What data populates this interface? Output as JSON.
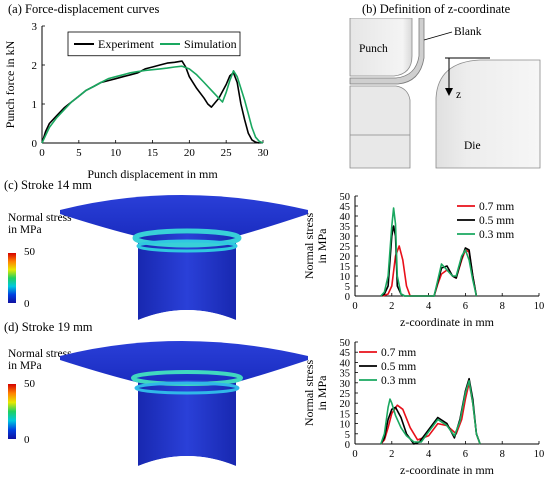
{
  "panel_a": {
    "title": "(a) Force-displacement curves"
  },
  "panel_b": {
    "title": "(b) Definition of z-coordinate",
    "labels": {
      "punch": "Punch",
      "blank": "Blank",
      "z": "z",
      "die": "Die"
    }
  },
  "panel_c": {
    "title": "(c) Stroke 14 mm",
    "colorbar_title": "Normal stress\nin MPa",
    "cb_max": "50",
    "cb_min": "0"
  },
  "panel_d": {
    "title": "(d) Stroke 19 mm",
    "colorbar_title": "Normal stress\nin MPa",
    "cb_max": "50",
    "cb_min": "0"
  },
  "chart_data": [
    {
      "id": "force",
      "type": "line",
      "xlabel": "Punch displacement in mm",
      "ylabel": "Punch force in kN",
      "xlim": [
        0,
        30
      ],
      "ylim": [
        0,
        3
      ],
      "xticks": [
        0,
        5,
        10,
        15,
        20,
        25,
        30
      ],
      "yticks": [
        0,
        1,
        2,
        3
      ],
      "grid": false,
      "legend": "top-right",
      "series": [
        {
          "name": "Experiment",
          "color": "#000000",
          "x": [
            0,
            0.5,
            1,
            2,
            3,
            4,
            5,
            6,
            7,
            8,
            9,
            10,
            11,
            12,
            13,
            14,
            15,
            16,
            17,
            18,
            19,
            19.5,
            20,
            21,
            22,
            22.5,
            23,
            24,
            25,
            25.5,
            26,
            26.5,
            27,
            27.5,
            28,
            28.5,
            29,
            29.5
          ],
          "y": [
            0,
            0.3,
            0.5,
            0.7,
            0.9,
            1.05,
            1.2,
            1.35,
            1.45,
            1.55,
            1.6,
            1.65,
            1.7,
            1.75,
            1.8,
            1.9,
            1.95,
            2.0,
            2.05,
            2.07,
            2.1,
            1.95,
            1.7,
            1.4,
            1.15,
            1.0,
            0.92,
            1.15,
            1.5,
            1.72,
            1.8,
            1.55,
            1.0,
            0.6,
            0.25,
            0.08,
            0.02,
            0.0
          ]
        },
        {
          "name": "Simulation",
          "color": "#1aa860",
          "x": [
            0,
            0.5,
            1,
            2,
            3,
            4,
            5,
            6,
            7,
            8,
            9,
            10,
            11,
            12,
            13,
            14,
            15,
            16,
            17,
            18,
            19,
            20,
            21,
            22,
            23,
            24,
            24.5,
            25,
            25.5,
            26,
            26.5,
            27,
            27.5,
            28,
            28.5,
            29,
            29.5,
            30
          ],
          "y": [
            0,
            0.2,
            0.4,
            0.65,
            0.85,
            1.05,
            1.2,
            1.35,
            1.45,
            1.55,
            1.65,
            1.7,
            1.75,
            1.8,
            1.83,
            1.86,
            1.88,
            1.9,
            1.92,
            1.95,
            1.97,
            1.9,
            1.75,
            1.55,
            1.35,
            1.15,
            1.05,
            1.3,
            1.6,
            1.85,
            1.7,
            1.4,
            1.1,
            0.75,
            0.4,
            0.15,
            0.04,
            0.0
          ]
        }
      ]
    },
    {
      "id": "stress14",
      "type": "line",
      "xlabel": "z-coordinate in mm",
      "ylabel": "Normal stress\nin MPa",
      "xlim": [
        0,
        10
      ],
      "ylim": [
        0,
        50
      ],
      "xticks": [
        0,
        2,
        4,
        6,
        8,
        10
      ],
      "yticks": [
        0,
        5,
        10,
        15,
        20,
        25,
        30,
        35,
        40,
        45,
        50
      ],
      "grid": false,
      "legend": "top-right",
      "series": [
        {
          "name": "0.7 mm",
          "color": "#e8101a",
          "x": [
            1.5,
            1.8,
            2.0,
            2.2,
            2.4,
            2.6,
            2.8,
            3.0,
            4.3,
            4.5,
            4.7,
            5.0,
            5.3,
            5.5,
            5.8,
            6.0,
            6.2,
            6.4,
            6.6
          ],
          "y": [
            0,
            1,
            5,
            20,
            25,
            18,
            5,
            0,
            0,
            6,
            11,
            13,
            10,
            9,
            18,
            23,
            22,
            10,
            0
          ]
        },
        {
          "name": "0.5 mm",
          "color": "#000000",
          "x": [
            1.4,
            1.6,
            1.8,
            2.0,
            2.1,
            2.2,
            2.3,
            2.5,
            2.7,
            4.3,
            4.5,
            4.7,
            5.0,
            5.3,
            5.5,
            5.8,
            6.0,
            6.2,
            6.4,
            6.6
          ],
          "y": [
            0,
            1,
            5,
            30,
            35,
            30,
            5,
            1,
            0,
            0,
            7,
            14,
            15,
            10,
            9,
            19,
            24,
            23,
            10,
            0
          ]
        },
        {
          "name": "0.3 mm",
          "color": "#1aa860",
          "x": [
            1.4,
            1.6,
            1.8,
            2.0,
            2.1,
            2.2,
            2.3,
            2.5,
            2.7,
            4.3,
            4.5,
            4.7,
            5.0,
            5.3,
            5.5,
            5.8,
            6.0,
            6.2,
            6.4,
            6.6
          ],
          "y": [
            0,
            2,
            10,
            35,
            44,
            36,
            10,
            1,
            0,
            0,
            8,
            16,
            13,
            10,
            10,
            20,
            23,
            18,
            8,
            0
          ]
        }
      ]
    },
    {
      "id": "stress19",
      "type": "line",
      "xlabel": "z-coordinate in mm",
      "ylabel": "Normal stress\nin MPa",
      "xlim": [
        0,
        10
      ],
      "ylim": [
        0,
        50
      ],
      "xticks": [
        0,
        2,
        4,
        6,
        8,
        10
      ],
      "yticks": [
        0,
        5,
        10,
        15,
        20,
        25,
        30,
        35,
        40,
        45,
        50
      ],
      "grid": false,
      "legend": "top-left",
      "series": [
        {
          "name": "0.7 mm",
          "color": "#e8101a",
          "x": [
            1.4,
            1.6,
            1.8,
            2.0,
            2.3,
            2.6,
            3.0,
            3.4,
            4.0,
            4.5,
            5.0,
            5.5,
            5.8,
            6.0,
            6.2,
            6.4,
            6.6,
            6.8
          ],
          "y": [
            0,
            2,
            8,
            15,
            19,
            17,
            8,
            2,
            4,
            10,
            9,
            5,
            12,
            22,
            30,
            20,
            5,
            0
          ]
        },
        {
          "name": "0.5 mm",
          "color": "#000000",
          "x": [
            1.4,
            1.6,
            1.8,
            2.0,
            2.2,
            2.5,
            2.8,
            3.2,
            3.5,
            4.0,
            4.5,
            5.0,
            5.4,
            5.7,
            6.0,
            6.2,
            6.4,
            6.6,
            6.8
          ],
          "y": [
            0,
            3,
            12,
            17,
            18,
            13,
            5,
            0,
            1,
            7,
            13,
            10,
            3,
            12,
            26,
            32,
            22,
            5,
            0
          ]
        },
        {
          "name": "0.3 mm",
          "color": "#1aa860",
          "x": [
            1.4,
            1.6,
            1.8,
            1.9,
            2.0,
            2.2,
            2.5,
            2.8,
            3.2,
            3.6,
            4.0,
            4.5,
            5.0,
            5.4,
            5.7,
            6.0,
            6.2,
            6.4,
            6.6,
            6.8
          ],
          "y": [
            0,
            5,
            18,
            22,
            20,
            14,
            8,
            4,
            1,
            1,
            6,
            12,
            9,
            4,
            11,
            25,
            31,
            20,
            5,
            0
          ]
        }
      ]
    }
  ]
}
